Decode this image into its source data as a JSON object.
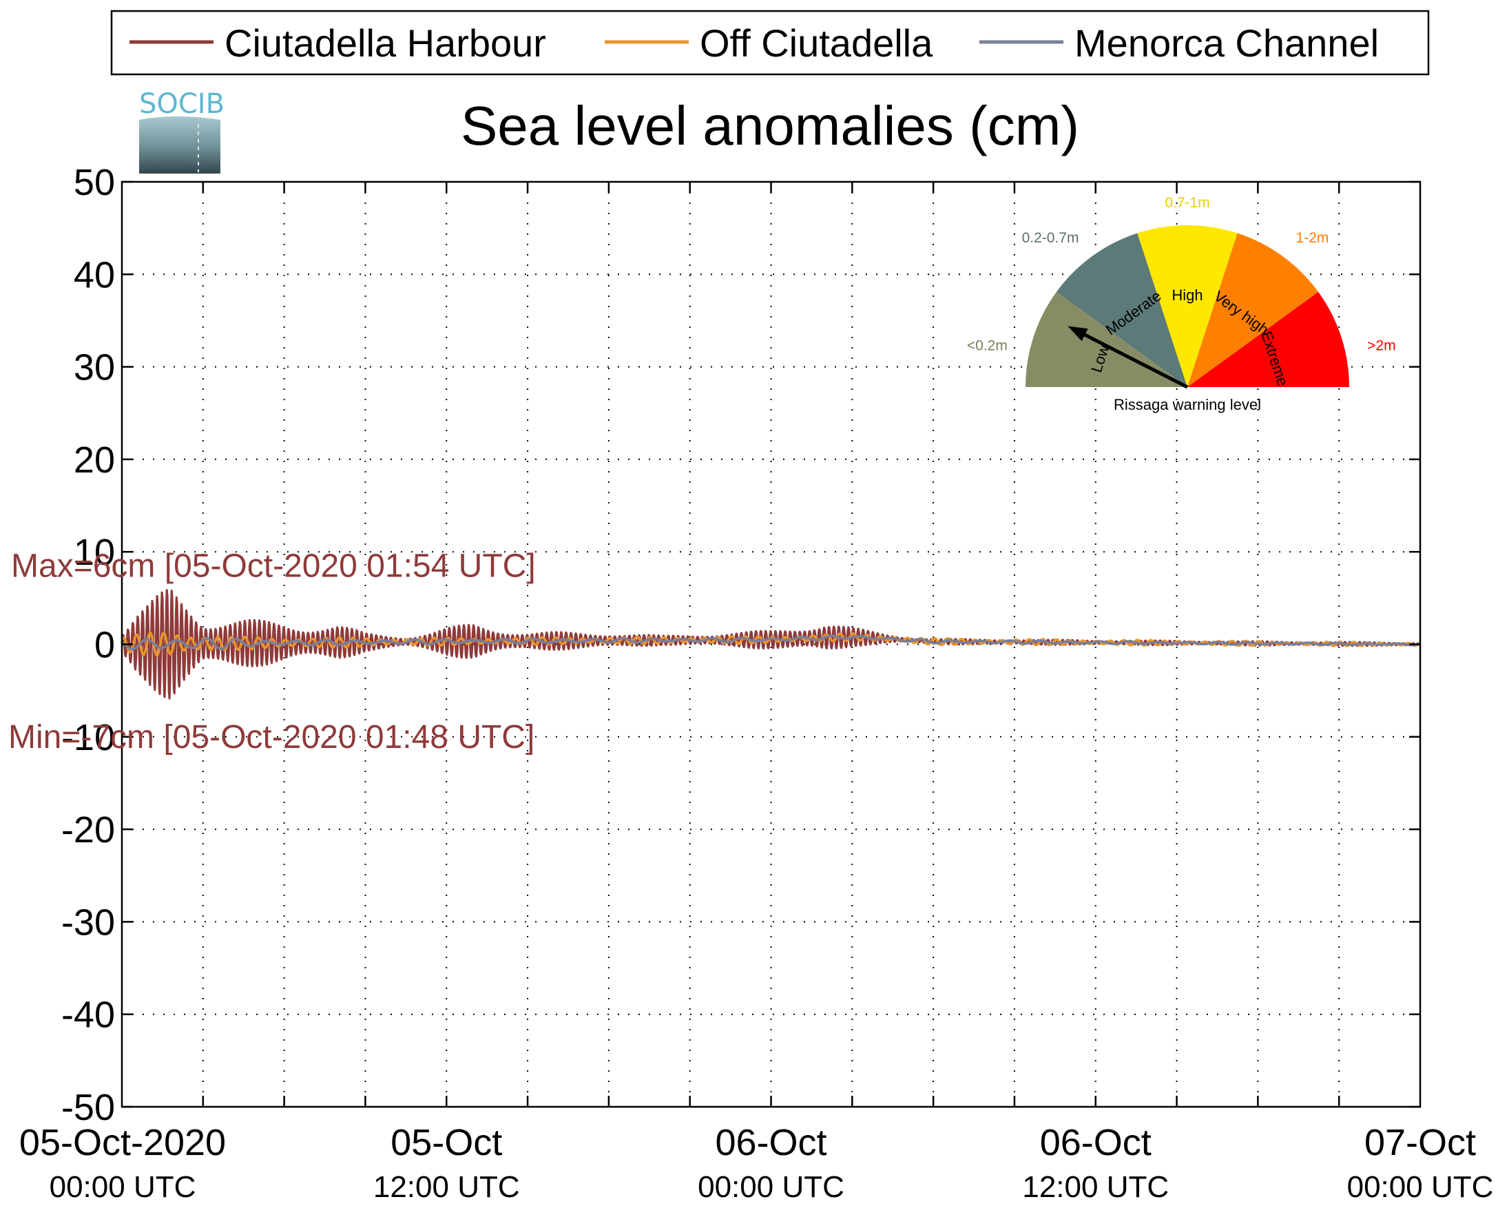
{
  "chart_data": {
    "type": "line",
    "title": "Sea level anomalies (cm)",
    "xlabel": "",
    "ylabel": "",
    "ylim": [
      -50,
      50
    ],
    "yticks": [
      -50,
      -40,
      -30,
      -20,
      -10,
      0,
      10,
      20,
      30,
      40,
      50
    ],
    "xlim": [
      "2020-10-05 00:00",
      "2020-10-07 00:00"
    ],
    "xticks": [
      {
        "at": "2020-10-05 00:00",
        "label": "05-Oct-2020",
        "sublabel": "00:00 UTC"
      },
      {
        "at": "2020-10-05 12:00",
        "label": "05-Oct",
        "sublabel": "12:00 UTC"
      },
      {
        "at": "2020-10-06 00:00",
        "label": "06-Oct",
        "sublabel": "00:00 UTC"
      },
      {
        "at": "2020-10-06 12:00",
        "label": "06-Oct",
        "sublabel": "12:00 UTC"
      },
      {
        "at": "2020-10-07 00:00",
        "label": "07-Oct",
        "sublabel": "00:00 UTC"
      }
    ],
    "minor_xtick_hours": 3,
    "grid": true,
    "legend_position": "top",
    "series": [
      {
        "name": "Ciutadella Harbour",
        "color": "#8f3a3a",
        "envelope": [
          {
            "t": "2020-10-05 00:00",
            "amp": 1.5
          },
          {
            "t": "2020-10-05 00:30",
            "amp": 3.5
          },
          {
            "t": "2020-10-05 01:00",
            "amp": 4.5
          },
          {
            "t": "2020-10-05 01:48",
            "amp": 6.5
          },
          {
            "t": "2020-10-05 02:30",
            "amp": 5.0
          },
          {
            "t": "2020-10-05 03:00",
            "amp": 3.2
          },
          {
            "t": "2020-10-05 05:00",
            "amp": 2.5
          },
          {
            "t": "2020-10-05 08:00",
            "amp": 2.0
          },
          {
            "t": "2020-10-05 09:00",
            "amp": 1.0
          },
          {
            "t": "2020-10-05 10:30",
            "amp": 0.6
          },
          {
            "t": "2020-10-05 12:00",
            "amp": 1.5
          },
          {
            "t": "2020-10-05 13:00",
            "amp": 2.0
          },
          {
            "t": "2020-10-05 15:00",
            "amp": 1.0
          },
          {
            "t": "2020-10-05 18:00",
            "amp": 0.9
          },
          {
            "t": "2020-10-05 20:00",
            "amp": 0.5
          },
          {
            "t": "2020-10-06 00:00",
            "amp": 1.0
          },
          {
            "t": "2020-10-06 02:00",
            "amp": 1.8
          },
          {
            "t": "2020-10-06 03:00",
            "amp": 1.0
          },
          {
            "t": "2020-10-06 05:00",
            "amp": 0.3
          },
          {
            "t": "2020-10-07 00:00",
            "amp": 0.2
          }
        ]
      },
      {
        "name": "Off Ciutadella",
        "color": "#e8952d",
        "envelope": [
          {
            "t": "2020-10-05 00:00",
            "amp": 0.8
          },
          {
            "t": "2020-10-05 01:48",
            "amp": 1.6
          },
          {
            "t": "2020-10-05 04:00",
            "amp": 0.7
          },
          {
            "t": "2020-10-05 12:00",
            "amp": 0.4
          },
          {
            "t": "2020-10-06 02:00",
            "amp": 0.4
          },
          {
            "t": "2020-10-07 00:00",
            "amp": 0.2
          }
        ]
      },
      {
        "name": "Menorca Channel",
        "color": "#7a7f9a",
        "envelope": [
          {
            "t": "2020-10-05 00:00",
            "amp": 0.5
          },
          {
            "t": "2020-10-05 02:00",
            "amp": 0.8
          },
          {
            "t": "2020-10-05 06:00",
            "amp": 0.3
          },
          {
            "t": "2020-10-07 00:00",
            "amp": 0.1
          }
        ]
      }
    ],
    "baseline": [
      {
        "t": "2020-10-05 00:00",
        "y": 0.0
      },
      {
        "t": "2020-10-05 12:00",
        "y": 0.3
      },
      {
        "t": "2020-10-06 00:00",
        "y": 0.5
      },
      {
        "t": "2020-10-06 03:00",
        "y": 0.8
      },
      {
        "t": "2020-10-06 06:00",
        "y": 0.3
      },
      {
        "t": "2020-10-07 00:00",
        "y": 0.0
      }
    ],
    "annotations": [
      {
        "text": "Max=6cm [05-Oct-2020 01:54 UTC]",
        "color": "#8f3a3a",
        "y": 8.5
      },
      {
        "text": "Min=-7cm [05-Oct-2020 01:48 UTC]",
        "color": "#8f3a3a",
        "y": -10
      }
    ]
  },
  "logo": {
    "text": "SOCIB"
  },
  "gauge": {
    "caption": "Rissaga warning level",
    "needle_level": "Low",
    "needle_angle_deg": 153,
    "sectors": [
      {
        "name": "Low",
        "range": "<0.2m",
        "color": "#878c64",
        "label_color": "#7a7d55",
        "start_deg": 180,
        "end_deg": 144
      },
      {
        "name": "Moderate",
        "range": "0.2-0.7m",
        "color": "#5c7a78",
        "label_color": "#5c6e6c",
        "start_deg": 144,
        "end_deg": 108
      },
      {
        "name": "High",
        "range": "0.7-1m",
        "color": "#ffe800",
        "label_color": "#e8cf00",
        "start_deg": 108,
        "end_deg": 72
      },
      {
        "name": "Very high",
        "range": "1-2m",
        "color": "#ff8000",
        "label_color": "#ff7a00",
        "start_deg": 72,
        "end_deg": 36
      },
      {
        "name": "Extreme",
        "range": ">2m",
        "color": "#ff0000",
        "label_color": "#ff0000",
        "start_deg": 36,
        "end_deg": 0
      }
    ]
  }
}
